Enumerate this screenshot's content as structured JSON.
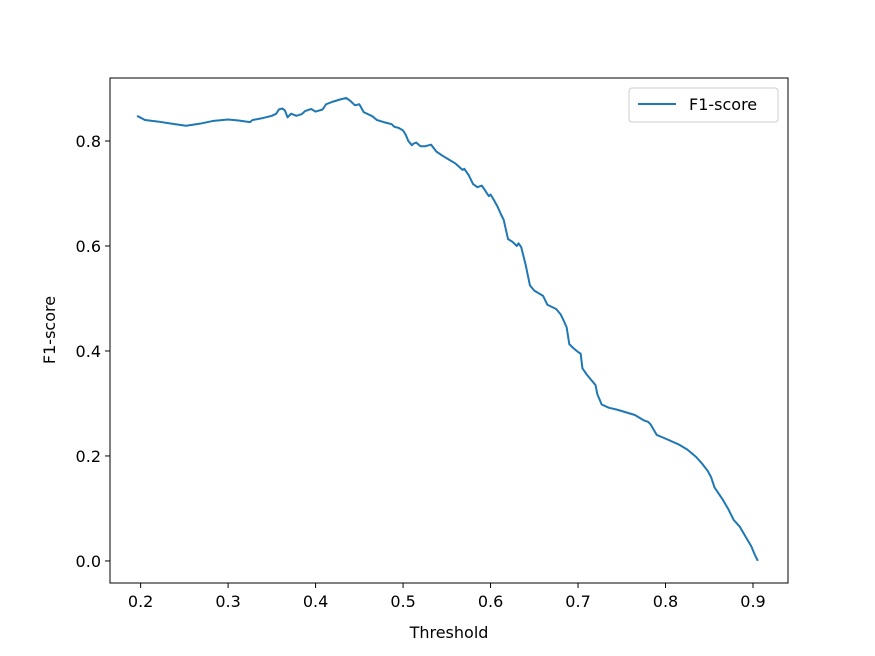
{
  "chart_data": {
    "type": "line",
    "title": "",
    "xlabel": "Threshold",
    "ylabel": "F1-score",
    "xlim": [
      0.165,
      0.94
    ],
    "ylim": [
      -0.042,
      0.92
    ],
    "xticks": [
      0.2,
      0.3,
      0.4,
      0.5,
      0.6,
      0.7,
      0.8,
      0.9
    ],
    "xtick_labels": [
      "0.2",
      "0.3",
      "0.4",
      "0.5",
      "0.6",
      "0.7",
      "0.8",
      "0.9"
    ],
    "yticks": [
      0.0,
      0.2,
      0.4,
      0.6,
      0.8
    ],
    "ytick_labels": [
      "0.0",
      "0.2",
      "0.4",
      "0.6",
      "0.8"
    ],
    "grid": false,
    "legend": {
      "placement": "top-right"
    },
    "series": [
      {
        "name": "F1-score",
        "color": "#1f77b4",
        "x": [
          0.197,
          0.205,
          0.22,
          0.235,
          0.252,
          0.268,
          0.282,
          0.3,
          0.312,
          0.325,
          0.328,
          0.338,
          0.35,
          0.355,
          0.358,
          0.362,
          0.365,
          0.368,
          0.372,
          0.378,
          0.384,
          0.388,
          0.395,
          0.4,
          0.408,
          0.412,
          0.42,
          0.428,
          0.435,
          0.44,
          0.445,
          0.45,
          0.455,
          0.465,
          0.47,
          0.48,
          0.487,
          0.49,
          0.495,
          0.5,
          0.503,
          0.506,
          0.51,
          0.512,
          0.515,
          0.52,
          0.525,
          0.532,
          0.538,
          0.545,
          0.552,
          0.56,
          0.568,
          0.57,
          0.575,
          0.58,
          0.585,
          0.59,
          0.593,
          0.596,
          0.598,
          0.6,
          0.603,
          0.608,
          0.612,
          0.615,
          0.62,
          0.625,
          0.63,
          0.632,
          0.635,
          0.64,
          0.645,
          0.65,
          0.655,
          0.66,
          0.665,
          0.675,
          0.68,
          0.683,
          0.687,
          0.69,
          0.695,
          0.7,
          0.703,
          0.705,
          0.71,
          0.715,
          0.72,
          0.722,
          0.727,
          0.735,
          0.745,
          0.755,
          0.765,
          0.775,
          0.78,
          0.783,
          0.79,
          0.8,
          0.815,
          0.825,
          0.835,
          0.842,
          0.848,
          0.852,
          0.856,
          0.865,
          0.872,
          0.878,
          0.885,
          0.892,
          0.898,
          0.902,
          0.905
        ],
        "y": [
          0.847,
          0.84,
          0.837,
          0.833,
          0.829,
          0.833,
          0.838,
          0.841,
          0.839,
          0.836,
          0.84,
          0.843,
          0.848,
          0.852,
          0.86,
          0.862,
          0.858,
          0.845,
          0.852,
          0.848,
          0.851,
          0.857,
          0.861,
          0.856,
          0.86,
          0.87,
          0.875,
          0.879,
          0.882,
          0.876,
          0.868,
          0.87,
          0.855,
          0.847,
          0.84,
          0.835,
          0.832,
          0.827,
          0.825,
          0.82,
          0.812,
          0.8,
          0.792,
          0.795,
          0.797,
          0.79,
          0.79,
          0.793,
          0.78,
          0.772,
          0.765,
          0.757,
          0.745,
          0.747,
          0.735,
          0.718,
          0.712,
          0.715,
          0.708,
          0.7,
          0.695,
          0.698,
          0.69,
          0.675,
          0.66,
          0.65,
          0.613,
          0.608,
          0.6,
          0.605,
          0.598,
          0.565,
          0.525,
          0.515,
          0.51,
          0.505,
          0.488,
          0.48,
          0.47,
          0.46,
          0.445,
          0.413,
          0.405,
          0.398,
          0.395,
          0.367,
          0.355,
          0.345,
          0.335,
          0.318,
          0.298,
          0.292,
          0.288,
          0.283,
          0.278,
          0.268,
          0.265,
          0.26,
          0.24,
          0.233,
          0.222,
          0.212,
          0.198,
          0.185,
          0.172,
          0.16,
          0.14,
          0.118,
          0.098,
          0.078,
          0.065,
          0.045,
          0.028,
          0.012,
          0.002
        ]
      }
    ]
  }
}
